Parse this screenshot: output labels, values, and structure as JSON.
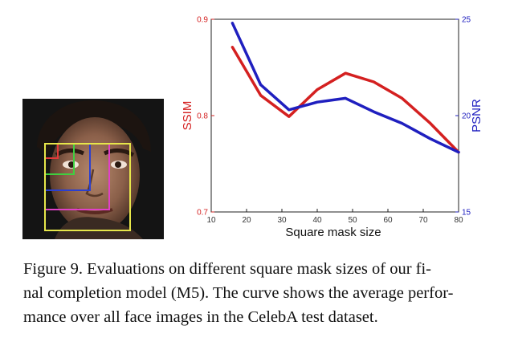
{
  "figure": {
    "caption_lines": [
      "Figure 9.  Evaluations on different square mask sizes of our fi-",
      "nal completion model (M5). The curve shows the average perfor-",
      "mance over all face images in the CelebA test dataset."
    ]
  },
  "face_image": {
    "mask_box_colors": [
      "#e23a3a",
      "#3fcf3f",
      "#2a3fd0",
      "#e040c8",
      "#e6e64a"
    ]
  },
  "chart_data": {
    "type": "line",
    "xlabel": "Square mask size",
    "xlim": [
      10,
      80
    ],
    "xticks": [
      10,
      20,
      30,
      40,
      50,
      60,
      70,
      80
    ],
    "axes": {
      "left": {
        "label": "SSIM",
        "color": "#d42020",
        "lim": [
          0.7,
          0.9
        ],
        "ticks": [
          "0.7",
          "0.8",
          "0.9"
        ],
        "tick_values": [
          0.7,
          0.8,
          0.9
        ]
      },
      "right": {
        "label": "PSNR",
        "color": "#2020c0",
        "lim": [
          15,
          25
        ],
        "ticks": [
          "15",
          "20",
          "25"
        ],
        "tick_values": [
          15,
          20,
          25
        ]
      }
    },
    "grid": false,
    "series": [
      {
        "axis": "left",
        "color": "#d42020",
        "x": [
          16,
          24,
          32,
          40,
          48,
          56,
          64,
          72,
          80
        ],
        "y": [
          0.871,
          0.821,
          0.799,
          0.827,
          0.844,
          0.835,
          0.818,
          0.792,
          0.762
        ]
      },
      {
        "axis": "right",
        "color": "#1f1fbf",
        "x": [
          16,
          24,
          32,
          40,
          48,
          56,
          64,
          72,
          80
        ],
        "y": [
          24.8,
          21.6,
          20.3,
          20.7,
          20.9,
          20.2,
          19.6,
          18.8,
          18.1
        ]
      }
    ]
  }
}
